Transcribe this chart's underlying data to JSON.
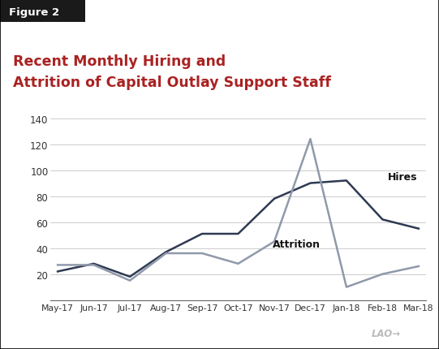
{
  "months": [
    "May-17",
    "Jun-17",
    "Jul-17",
    "Aug-17",
    "Sep-17",
    "Oct-17",
    "Nov-17",
    "Dec-17",
    "Jan-18",
    "Feb-18",
    "Mar-18"
  ],
  "hires": [
    22,
    28,
    18,
    37,
    51,
    51,
    78,
    90,
    92,
    62,
    55
  ],
  "attrition": [
    27,
    27,
    15,
    36,
    36,
    28,
    45,
    124,
    10,
    20,
    26
  ],
  "hires_color": "#2e3a52",
  "attrition_color": "#9099aa",
  "title_line1": "Recent Monthly Hiring and",
  "title_line2": "Attrition of Capital Outlay Support Staff",
  "title_color": "#aa2222",
  "figure2_label": "Figure 2",
  "ylim_min": 0,
  "ylim_max": 140,
  "yticks": [
    20,
    40,
    60,
    80,
    100,
    120,
    140
  ],
  "hires_label": "Hires",
  "attrition_label": "Attrition",
  "background_color": "#ffffff",
  "grid_color": "#cccccc",
  "border_color": "#000000",
  "fig2_bg": "#1a1a1a",
  "fig2_text_color": "#ffffff",
  "lao_color": "#bbbbbb"
}
